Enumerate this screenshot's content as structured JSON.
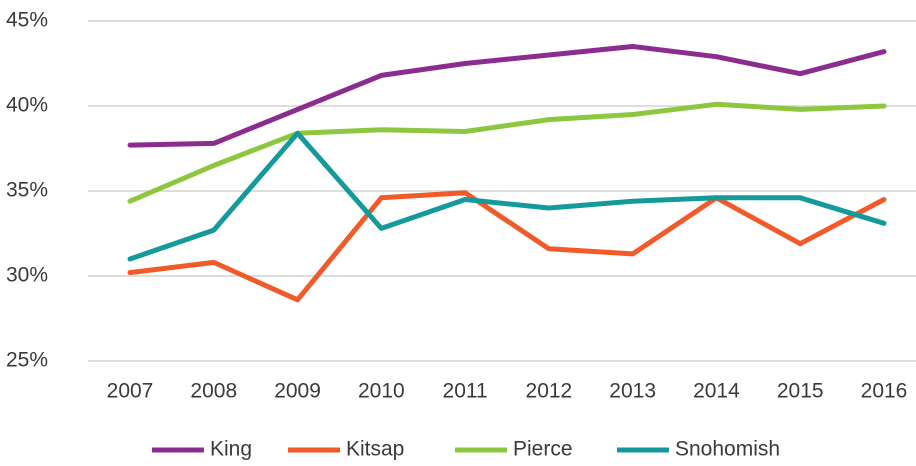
{
  "chart_data": {
    "type": "line",
    "categories": [
      "2007",
      "2008",
      "2009",
      "2010",
      "2011",
      "2012",
      "2013",
      "2014",
      "2015",
      "2016"
    ],
    "series": [
      {
        "name": "King",
        "color": "#8b2c8f",
        "values": [
          37.7,
          37.8,
          39.8,
          41.8,
          42.5,
          43.0,
          43.5,
          42.9,
          41.9,
          43.2
        ]
      },
      {
        "name": "Kitsap",
        "color": "#f15a29",
        "values": [
          30.2,
          30.8,
          28.6,
          34.6,
          34.9,
          31.6,
          31.3,
          34.6,
          31.9,
          34.5
        ]
      },
      {
        "name": "Pierce",
        "color": "#8dc63f",
        "values": [
          34.4,
          36.5,
          38.4,
          38.6,
          38.5,
          39.2,
          39.5,
          40.1,
          39.8,
          40.0
        ]
      },
      {
        "name": "Snohomish",
        "color": "#149a9b",
        "values": [
          31.0,
          32.7,
          38.4,
          32.8,
          34.5,
          34.0,
          34.4,
          34.6,
          34.6,
          33.1
        ]
      }
    ],
    "ylim": [
      25,
      45
    ],
    "yticks": [
      {
        "value": 25,
        "label": "25%"
      },
      {
        "value": 30,
        "label": "30%"
      },
      {
        "value": 35,
        "label": "35%"
      },
      {
        "value": 40,
        "label": "40%"
      },
      {
        "value": 45,
        "label": "45%"
      }
    ],
    "grid": true,
    "legend": "bottom"
  }
}
